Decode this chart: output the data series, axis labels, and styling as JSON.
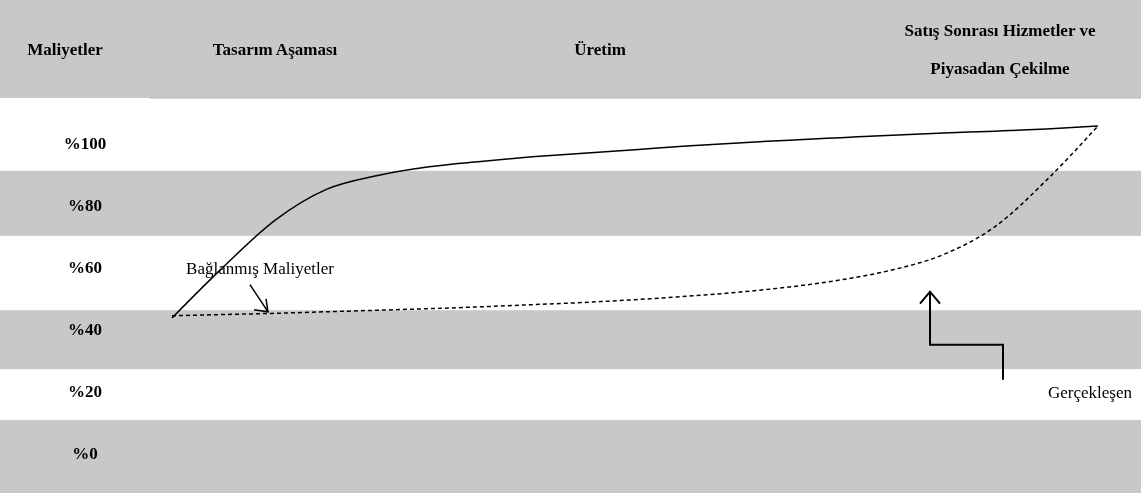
{
  "chart_data": {
    "type": "line",
    "ylabel": "Maliyetler",
    "categories": [
      null,
      null,
      null,
      null,
      null,
      null,
      null,
      null,
      null,
      null,
      null,
      null,
      null,
      null,
      null,
      null,
      null,
      null,
      null
    ],
    "ylim": [
      -13,
      114.5
    ],
    "yticks": [
      {
        "value": 0,
        "label": "%0"
      },
      {
        "value": 20,
        "label": "%20"
      },
      {
        "value": 40,
        "label": "%40"
      },
      {
        "value": 60,
        "label": "%60"
      },
      {
        "value": 80,
        "label": "%80"
      },
      {
        "value": 100,
        "label": "%100"
      }
    ],
    "series": [
      {
        "color": "#000000",
        "line_style": "solid",
        "values": [
          43.5,
          60,
          75,
          85,
          89.5,
          92.3,
          94,
          95.5,
          96.7,
          97.8,
          99,
          100,
          100.9,
          101.7,
          102.5,
          103.2,
          103.8,
          104.5,
          105.5
        ]
      },
      {
        "color": "#000000",
        "line_style": "dashed",
        "values": [
          44.2,
          44.6,
          45,
          45.5,
          46,
          46.5,
          47.1,
          47.8,
          48.5,
          49.4,
          50.5,
          51.8,
          53.5,
          55.8,
          59,
          64,
          73,
          88,
          105.5
        ]
      }
    ],
    "bands": [
      {
        "axis": "y",
        "from": 70,
        "to": 91,
        "color": "#c8c8c8"
      },
      {
        "axis": "y",
        "from": 27,
        "to": 46,
        "color": "#c8c8c8"
      },
      {
        "axis": "y",
        "from": -13,
        "to": 10.6,
        "color": "#c8c8c8"
      }
    ],
    "annotations": [
      "Tasarım Aşaması",
      "Üretim",
      "Satış Sonrası Hizmetler ve Piyasadan Çekilme",
      "Bağlanmış Maliyetler",
      "Gerçekleşen"
    ]
  }
}
